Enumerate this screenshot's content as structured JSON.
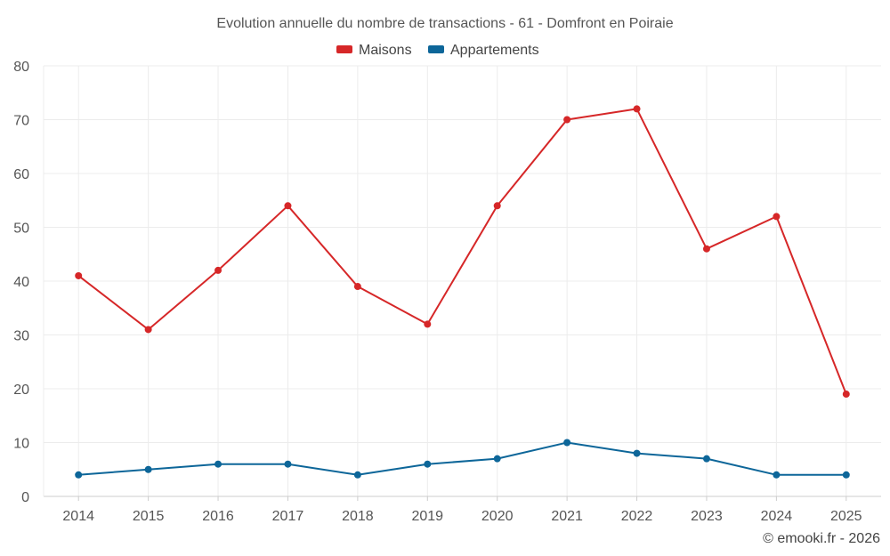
{
  "chart_data": {
    "type": "line",
    "title": "Evolution annuelle du nombre de transactions - 61 - Domfront en Poiraie",
    "categories": [
      "2014",
      "2015",
      "2016",
      "2017",
      "2018",
      "2019",
      "2020",
      "2021",
      "2022",
      "2023",
      "2024",
      "2025"
    ],
    "series": [
      {
        "name": "Maisons",
        "color": "#d62728",
        "values": [
          41,
          31,
          42,
          54,
          39,
          32,
          54,
          70,
          72,
          46,
          52,
          19
        ]
      },
      {
        "name": "Appartements",
        "color": "#0d6699",
        "values": [
          4,
          5,
          6,
          6,
          4,
          6,
          7,
          10,
          8,
          7,
          4,
          4
        ]
      }
    ],
    "ylim": [
      0,
      80
    ],
    "yticks": [
      "0",
      "10",
      "20",
      "30",
      "40",
      "50",
      "60",
      "70",
      "80"
    ],
    "grid": true,
    "legend": "top-center",
    "xlabel": "",
    "ylabel": ""
  },
  "credit": "© emooki.fr - 2026"
}
